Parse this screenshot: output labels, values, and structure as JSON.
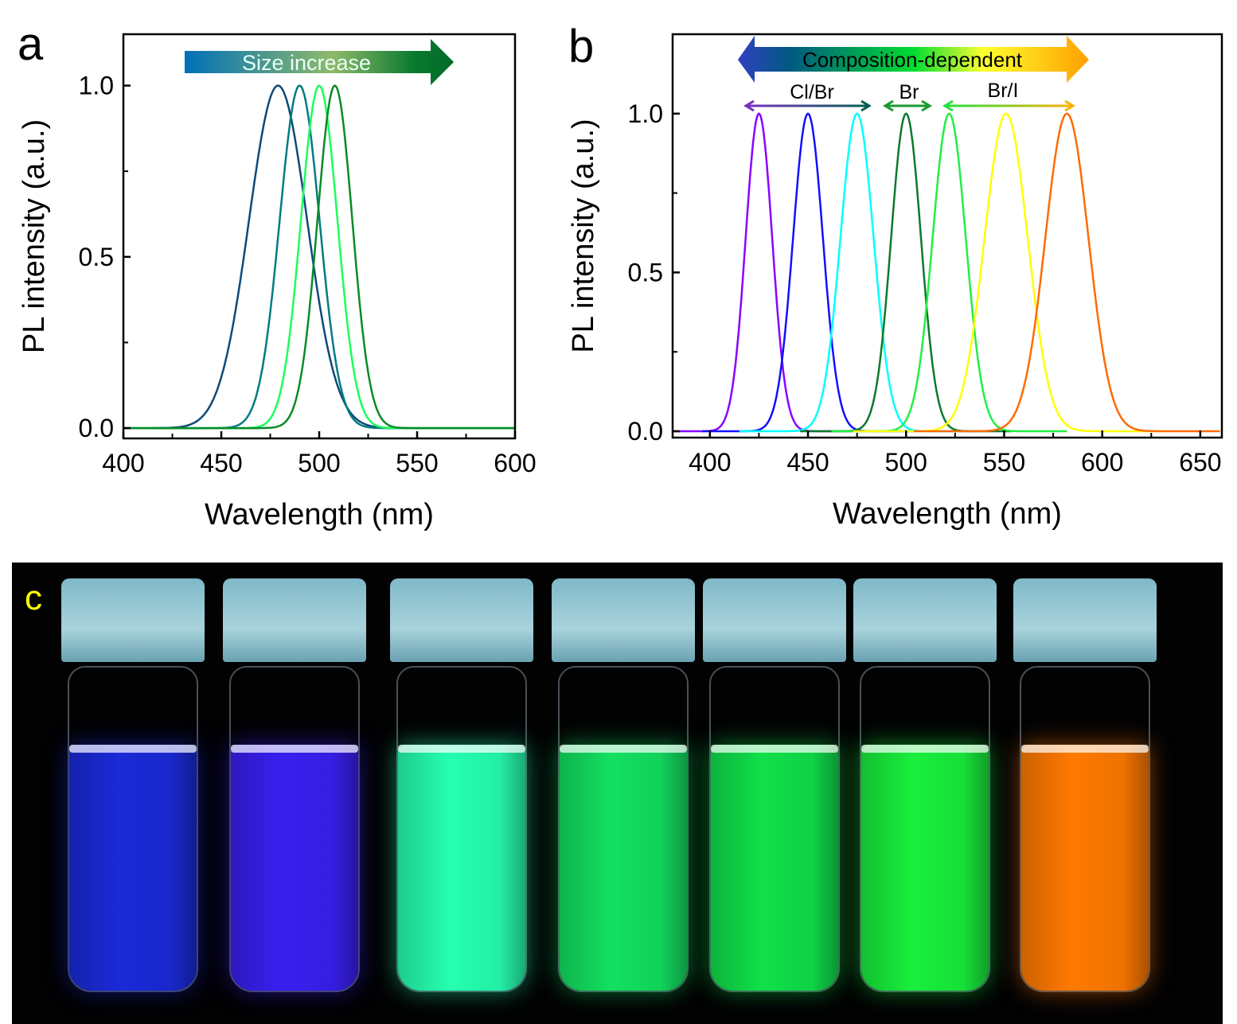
{
  "panel_labels": {
    "a": "a",
    "b": "b",
    "c": "c"
  },
  "chart_data": [
    {
      "type": "line",
      "panel": "a",
      "xlabel": "Wavelength (nm)",
      "ylabel": "PL intensity (a.u.)",
      "xlim": [
        400,
        600
      ],
      "ylim": [
        -0.03,
        1.15
      ],
      "xticks": [
        "400",
        "450",
        "500",
        "550",
        "600"
      ],
      "yticks": [
        "0.0",
        "0.5",
        "1.0"
      ],
      "annotation": "Size increase",
      "series": [
        {
          "peak": 479,
          "fwhm": 35,
          "color": "#0d4a7a"
        },
        {
          "peak": 490,
          "fwhm": 24,
          "color": "#007c80"
        },
        {
          "peak": 500,
          "fwhm": 22,
          "color": "#1aff5a"
        },
        {
          "peak": 508,
          "fwhm": 21,
          "color": "#0a8a2a"
        }
      ]
    },
    {
      "type": "line",
      "panel": "b",
      "xlabel": "Wavelength (nm)",
      "ylabel": "PL intensity (a.u.)",
      "xlim": [
        381,
        661
      ],
      "ylim": [
        -0.02,
        1.25
      ],
      "xticks": [
        "400",
        "450",
        "500",
        "550",
        "600",
        "650"
      ],
      "yticks": [
        "0.0",
        "0.5",
        "1.0"
      ],
      "annotation": "Composition-dependent",
      "group_labels": [
        "Cl/Br",
        "Br",
        "Br/I"
      ],
      "series": [
        {
          "peak": 425,
          "fwhm": 16,
          "color": "#8a00ff"
        },
        {
          "peak": 450,
          "fwhm": 18,
          "color": "#1010ff"
        },
        {
          "peak": 475,
          "fwhm": 20,
          "color": "#00ffff"
        },
        {
          "peak": 500,
          "fwhm": 18,
          "color": "#0b7a2a"
        },
        {
          "peak": 522,
          "fwhm": 20,
          "color": "#22ee44"
        },
        {
          "peak": 551,
          "fwhm": 26,
          "color": "#ffff00"
        },
        {
          "peak": 582,
          "fwhm": 26,
          "color": "#ff6a00"
        }
      ]
    }
  ],
  "photo": {
    "vial_colors": [
      "#1a2ad8",
      "#3a1ff0",
      "#25ffb0",
      "#12e060",
      "#10e04a",
      "#18ef3c",
      "#ff7a00"
    ]
  }
}
